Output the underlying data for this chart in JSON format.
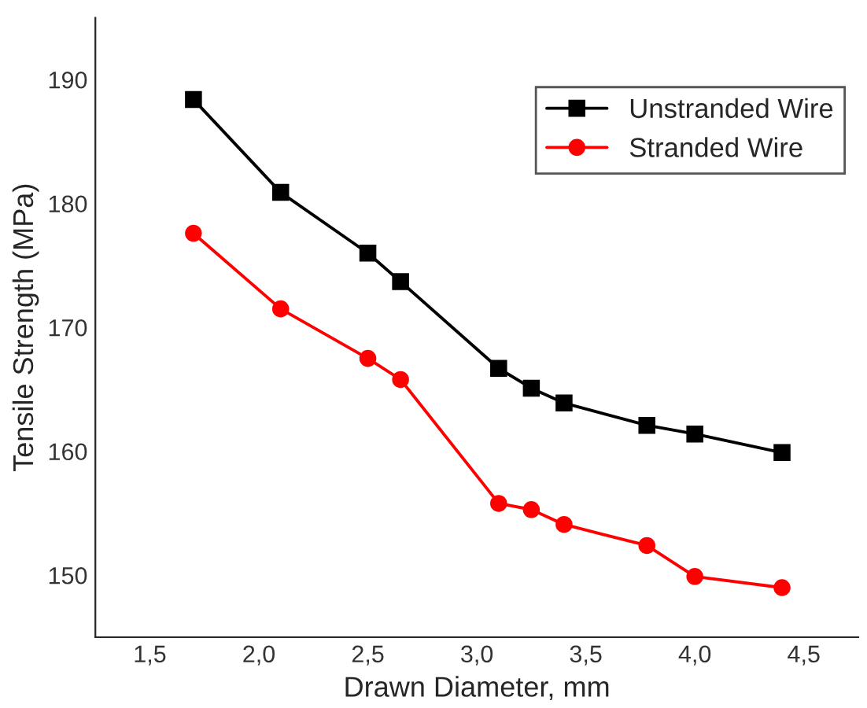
{
  "chart_data": {
    "type": "line",
    "xlabel": "Drawn Diameter, mm",
    "ylabel": "Tensile Strength (MPa)",
    "x": [
      1.7,
      2.1,
      2.5,
      2.65,
      3.1,
      3.25,
      3.4,
      3.78,
      4.0,
      4.4
    ],
    "series": [
      {
        "name": "Unstranded Wire",
        "color": "#000000",
        "marker": "square",
        "values": [
          188.4,
          180.9,
          176.0,
          173.7,
          166.7,
          165.1,
          163.9,
          162.1,
          161.4,
          159.9
        ]
      },
      {
        "name": "Stranded Wire",
        "color": "#ff0000",
        "marker": "circle",
        "values": [
          177.6,
          171.5,
          167.5,
          165.8,
          155.8,
          155.3,
          154.1,
          152.4,
          149.9,
          149.0
        ]
      }
    ],
    "xlim": [
      1.25,
      4.75
    ],
    "ylim": [
      145,
      195
    ],
    "xticks": [
      {
        "value": 1.5,
        "label": "1,5"
      },
      {
        "value": 2.0,
        "label": "2,0"
      },
      {
        "value": 2.5,
        "label": "2,5"
      },
      {
        "value": 3.0,
        "label": "3,0"
      },
      {
        "value": 3.5,
        "label": "3,5"
      },
      {
        "value": 4.0,
        "label": "4,0"
      },
      {
        "value": 4.5,
        "label": "4,5"
      }
    ],
    "yticks": [
      150,
      160,
      170,
      180,
      190
    ],
    "grid": false,
    "legend": "top right",
    "line_style": "solid"
  }
}
